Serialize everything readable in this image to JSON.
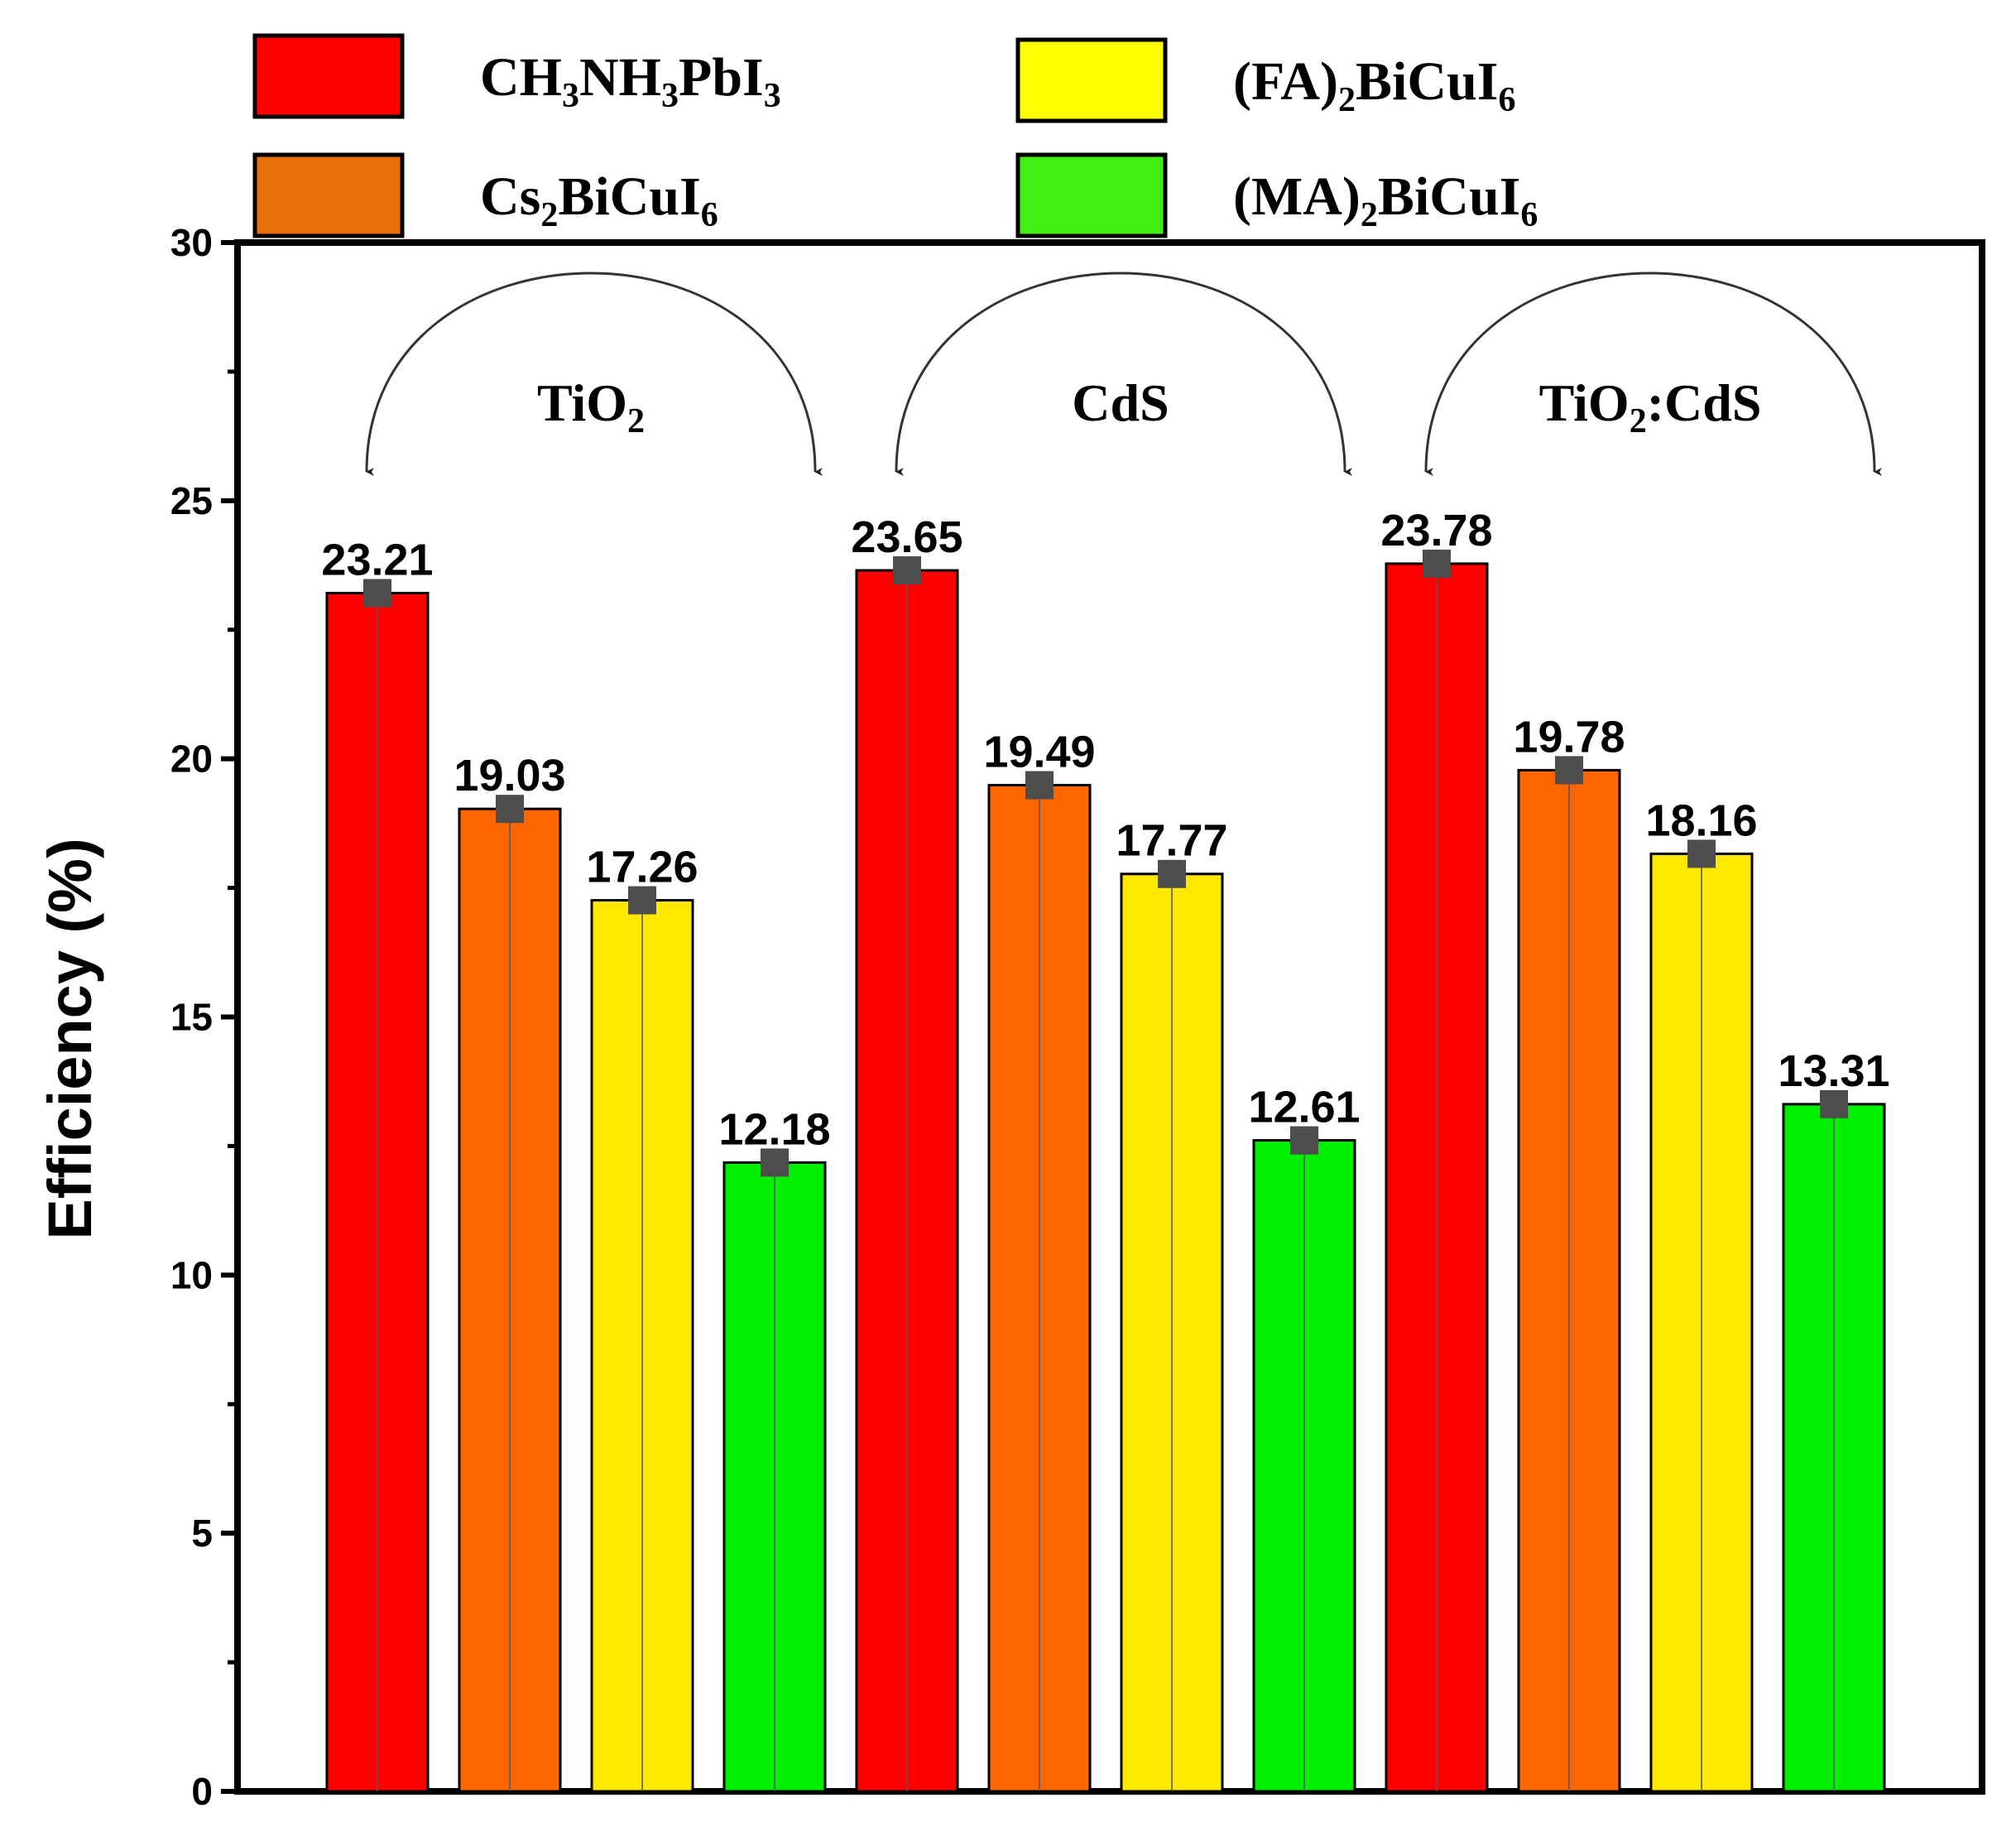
{
  "chart_data": {
    "type": "bar",
    "ylabel": "Efficiency (%)",
    "xlabel": "",
    "ylim": [
      0,
      30
    ],
    "yticks": [
      0,
      5,
      10,
      15,
      20,
      25,
      30
    ],
    "yticks_text": [
      "0",
      "5",
      "10",
      "15",
      "20",
      "25",
      "30"
    ],
    "categories": [
      "TiO2",
      "CdS",
      "TiO2:CdS"
    ],
    "category_labels": [
      {
        "main": "TiO",
        "sub": "2",
        "tail": ""
      },
      {
        "main": "CdS",
        "sub": "",
        "tail": ""
      },
      {
        "main": "TiO",
        "sub": "2",
        "tail": ":CdS"
      }
    ],
    "series": [
      {
        "name": "CH3NH3PbI3",
        "color": "#ff0000",
        "legend_parts": [
          [
            "CH",
            ""
          ],
          [
            "3",
            "sub"
          ],
          [
            "NH",
            ""
          ],
          [
            "3",
            "sub"
          ],
          [
            "PbI",
            ""
          ],
          [
            "3",
            "sub"
          ]
        ],
        "values": [
          23.21,
          23.65,
          23.78
        ],
        "value_labels": [
          "23.21",
          "23.65",
          "23.78"
        ]
      },
      {
        "name": "Cs2BiCuI6",
        "color": "#ff6600",
        "legend_color": "#e8700a",
        "legend_parts": [
          [
            "Cs",
            ""
          ],
          [
            "2",
            "sub"
          ],
          [
            "BiCuI",
            ""
          ],
          [
            "6",
            "sub"
          ]
        ],
        "values": [
          19.03,
          19.49,
          19.78
        ],
        "value_labels": [
          "19.03",
          "19.49",
          "19.78"
        ]
      },
      {
        "name": "(FA)2BiCuI6",
        "color": "#ffe800",
        "legend_color": "#ffff00",
        "legend_parts": [
          [
            "(FA)",
            ""
          ],
          [
            "2",
            "sub"
          ],
          [
            "BiCuI",
            ""
          ],
          [
            "6",
            "sub"
          ]
        ],
        "values": [
          17.26,
          17.77,
          18.16
        ],
        "value_labels": [
          "17.26",
          "17.77",
          "18.16"
        ]
      },
      {
        "name": "(MA)2BiCuI6",
        "color": "#00ee00",
        "legend_color": "#44ee11",
        "legend_parts": [
          [
            "(MA)",
            ""
          ],
          [
            "2",
            "sub"
          ],
          [
            "BiCuI",
            ""
          ],
          [
            "6",
            "sub"
          ]
        ],
        "values": [
          12.18,
          12.61,
          13.31
        ],
        "value_labels": [
          "12.18",
          "12.61",
          "13.31"
        ]
      }
    ],
    "legend_position": "top",
    "grid": false,
    "error_bar_color": "#555555",
    "marker_color": "#4d4d4d"
  }
}
